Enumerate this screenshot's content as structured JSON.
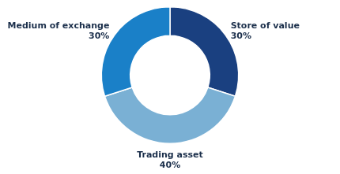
{
  "chart_data": {
    "type": "doughnut",
    "categories": [
      "Store of value",
      "Trading asset",
      "Medium of exchange"
    ],
    "values": [
      30,
      40,
      30
    ],
    "value_labels": [
      "30%",
      "40%",
      "30%"
    ],
    "colors": [
      "#1a4080",
      "#7ab0d4",
      "#1a80c8"
    ],
    "data_labels": true
  }
}
